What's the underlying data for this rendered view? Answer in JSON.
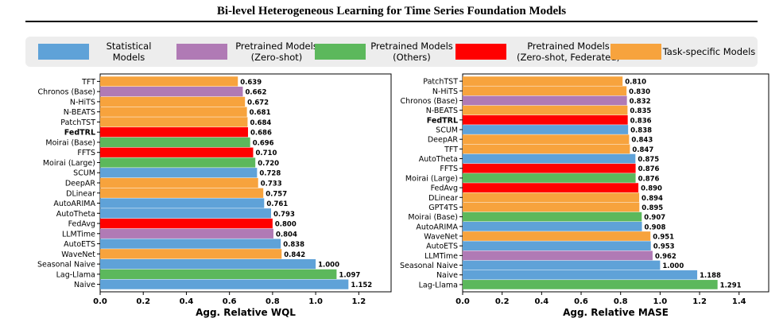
{
  "title": "Bi-level Heterogeneous Learning for Time Series Foundation Models",
  "colors": {
    "statistical": "#5fa2d8",
    "pretrained_zero_shot": "#b07ab5",
    "pretrained_others": "#5cb85c",
    "pretrained_federated": "#ff0000",
    "task_specific": "#f7a33d"
  },
  "legend": [
    {
      "key": "statistical",
      "label": "Statistical Models"
    },
    {
      "key": "pretrained_zero_shot",
      "label": "Pretrained Models\n(Zero-shot)"
    },
    {
      "key": "pretrained_others",
      "label": "Pretrained Models\n(Others)"
    },
    {
      "key": "pretrained_federated",
      "label": "Pretrained Models\n(Zero-shot, Federated)"
    },
    {
      "key": "task_specific",
      "label": "Task-specific Models"
    }
  ],
  "chart_data": [
    {
      "type": "bar",
      "orientation": "horizontal",
      "xlabel": "Agg. Relative WQL",
      "xlim": [
        0,
        1.35
      ],
      "xticks": [
        "0.0",
        "0.2",
        "0.4",
        "0.6",
        "0.8",
        "1.0",
        "1.2"
      ],
      "bold_category": "FedTRL",
      "bars": [
        {
          "label": "TFT",
          "value": 0.639,
          "value_text": "0.639",
          "group": "task_specific"
        },
        {
          "label": "Chronos (Base)",
          "value": 0.662,
          "value_text": "0.662",
          "group": "pretrained_zero_shot"
        },
        {
          "label": "N-HiTS",
          "value": 0.672,
          "value_text": "0.672",
          "group": "task_specific"
        },
        {
          "label": "N-BEATS",
          "value": 0.681,
          "value_text": "0.681",
          "group": "task_specific"
        },
        {
          "label": "PatchTST",
          "value": 0.684,
          "value_text": "0.684",
          "group": "task_specific"
        },
        {
          "label": "FedTRL",
          "value": 0.686,
          "value_text": "0.686",
          "group": "pretrained_federated"
        },
        {
          "label": "Moirai (Base)",
          "value": 0.696,
          "value_text": "0.696",
          "group": "pretrained_others"
        },
        {
          "label": "FFTS",
          "value": 0.71,
          "value_text": "0.710",
          "group": "pretrained_federated"
        },
        {
          "label": "Moirai (Large)",
          "value": 0.72,
          "value_text": "0.720",
          "group": "pretrained_others"
        },
        {
          "label": "SCUM",
          "value": 0.728,
          "value_text": "0.728",
          "group": "statistical"
        },
        {
          "label": "DeepAR",
          "value": 0.733,
          "value_text": "0.733",
          "group": "task_specific"
        },
        {
          "label": "DLinear",
          "value": 0.757,
          "value_text": "0.757",
          "group": "task_specific"
        },
        {
          "label": "AutoARIMA",
          "value": 0.761,
          "value_text": "0.761",
          "group": "statistical"
        },
        {
          "label": "AutoTheta",
          "value": 0.793,
          "value_text": "0.793",
          "group": "statistical"
        },
        {
          "label": "FedAvg",
          "value": 0.8,
          "value_text": "0.800",
          "group": "pretrained_federated"
        },
        {
          "label": "LLMTime",
          "value": 0.804,
          "value_text": "0.804",
          "group": "pretrained_zero_shot"
        },
        {
          "label": "AutoETS",
          "value": 0.838,
          "value_text": "0.838",
          "group": "statistical"
        },
        {
          "label": "WaveNet",
          "value": 0.842,
          "value_text": "0.842",
          "group": "task_specific"
        },
        {
          "label": "Seasonal Naive",
          "value": 1.0,
          "value_text": "1.000",
          "group": "statistical"
        },
        {
          "label": "Lag-Llama",
          "value": 1.097,
          "value_text": "1.097",
          "group": "pretrained_others"
        },
        {
          "label": "Naive",
          "value": 1.152,
          "value_text": "1.152",
          "group": "statistical"
        }
      ]
    },
    {
      "type": "bar",
      "orientation": "horizontal",
      "xlabel": "Agg. Relative MASE",
      "xlim": [
        0,
        1.55
      ],
      "xticks": [
        "0.0",
        "0.2",
        "0.4",
        "0.6",
        "0.8",
        "1.0",
        "1.2",
        "1.4"
      ],
      "bold_category": "FedTRL",
      "bars": [
        {
          "label": "PatchTST",
          "value": 0.81,
          "value_text": "0.810",
          "group": "task_specific"
        },
        {
          "label": "N-HiTS",
          "value": 0.83,
          "value_text": "0.830",
          "group": "task_specific"
        },
        {
          "label": "Chronos (Base)",
          "value": 0.832,
          "value_text": "0.832",
          "group": "pretrained_zero_shot"
        },
        {
          "label": "N-BEATS",
          "value": 0.835,
          "value_text": "0.835",
          "group": "task_specific"
        },
        {
          "label": "FedTRL",
          "value": 0.836,
          "value_text": "0.836",
          "group": "pretrained_federated"
        },
        {
          "label": "SCUM",
          "value": 0.838,
          "value_text": "0.838",
          "group": "statistical"
        },
        {
          "label": "DeepAR",
          "value": 0.843,
          "value_text": "0.843",
          "group": "task_specific"
        },
        {
          "label": "TFT",
          "value": 0.847,
          "value_text": "0.847",
          "group": "task_specific"
        },
        {
          "label": "AutoTheta",
          "value": 0.875,
          "value_text": "0.875",
          "group": "statistical"
        },
        {
          "label": "FFTS",
          "value": 0.876,
          "value_text": "0.876",
          "group": "pretrained_federated"
        },
        {
          "label": "Moirai (Large)",
          "value": 0.876,
          "value_text": "0.876",
          "group": "pretrained_others"
        },
        {
          "label": "FedAvg",
          "value": 0.89,
          "value_text": "0.890",
          "group": "pretrained_federated"
        },
        {
          "label": "DLinear",
          "value": 0.894,
          "value_text": "0.894",
          "group": "task_specific"
        },
        {
          "label": "GPT4TS",
          "value": 0.895,
          "value_text": "0.895",
          "group": "task_specific"
        },
        {
          "label": "Moirai (Base)",
          "value": 0.907,
          "value_text": "0.907",
          "group": "pretrained_others"
        },
        {
          "label": "AutoARIMA",
          "value": 0.908,
          "value_text": "0.908",
          "group": "statistical"
        },
        {
          "label": "WaveNet",
          "value": 0.951,
          "value_text": "0.951",
          "group": "task_specific"
        },
        {
          "label": "AutoETS",
          "value": 0.953,
          "value_text": "0.953",
          "group": "statistical"
        },
        {
          "label": "LLMTime",
          "value": 0.962,
          "value_text": "0.962",
          "group": "pretrained_zero_shot"
        },
        {
          "label": "Seasonal Naive",
          "value": 1.0,
          "value_text": "1.000",
          "group": "statistical"
        },
        {
          "label": "Naive",
          "value": 1.188,
          "value_text": "1.188",
          "group": "statistical"
        },
        {
          "label": "Lag-Llama",
          "value": 1.291,
          "value_text": "1.291",
          "group": "pretrained_others"
        }
      ]
    }
  ]
}
